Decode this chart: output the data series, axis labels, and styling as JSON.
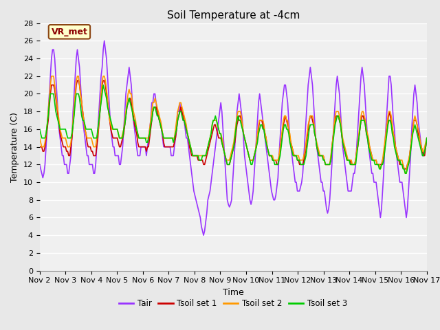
{
  "title": "Soil Temperature at -4cm",
  "xlabel": "Time",
  "ylabel": "Temperature (C)",
  "ylim": [
    0,
    28
  ],
  "xlim": [
    0,
    15
  ],
  "xtick_labels": [
    "Nov 2",
    "Nov 3",
    "Nov 4",
    "Nov 5",
    "Nov 6",
    "Nov 7",
    "Nov 8",
    "Nov 9",
    "Nov 10",
    "Nov 11",
    "Nov 12",
    "Nov 13",
    "Nov 14",
    "Nov 15",
    "Nov 16",
    "Nov 17"
  ],
  "annotation_text": "VR_met",
  "annotation_bg": "#ffffcc",
  "annotation_border": "#8B4513",
  "fig_bg": "#e8e8e8",
  "plot_bg": "#f0f0f0",
  "grid_color": "#ffffff",
  "colors": {
    "Tair": "#9933ff",
    "Tsoil1": "#cc0000",
    "Tsoil2": "#ff9900",
    "Tsoil3": "#00cc00"
  },
  "legend_labels": [
    "Tair",
    "Tsoil set 1",
    "Tsoil set 2",
    "Tsoil set 3"
  ],
  "title_fontsize": 11,
  "axis_fontsize": 9,
  "tick_fontsize": 8,
  "linewidth": 1.2
}
